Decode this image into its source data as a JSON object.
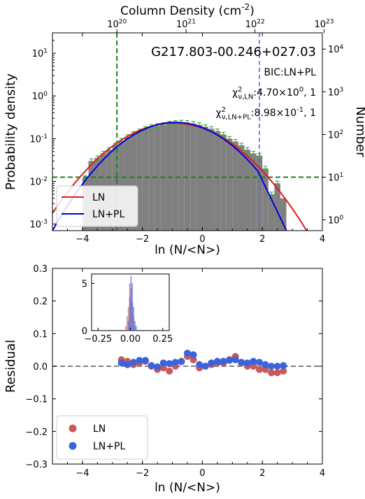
{
  "chart_data": [
    {
      "type": "histogram",
      "panel": "top",
      "title": "G217.803-00.246+027.03",
      "xlabel": "ln (N/<N>)",
      "ylabel": "Probability density",
      "ylabel_right": "Number",
      "xlabel_top": "Column Density (cm$^{-2}$)",
      "xlim": [
        -5,
        4
      ],
      "ylim_log": [
        0.0007,
        30
      ],
      "xticks": [
        "−4",
        "−2",
        "0",
        "2",
        "4"
      ],
      "yticks": [
        "10$^{-3}$",
        "10$^{-2}$",
        "10$^{-1}$",
        "10$^{0}$",
        "10$^{1}$"
      ],
      "top_ticks": [
        "10$^{20}$",
        "10$^{21}$",
        "10$^{22}$",
        "10$^{23}$"
      ],
      "right_ticks": [
        "10$^{0}$",
        "10$^{1}$",
        "10$^{2}$",
        "10$^{3}$",
        "10$^{4}$"
      ],
      "annotations": [
        "BIC:LN+PL",
        "χ$^{2}_{ν,LN}$:4.70×10$^{0}$, 1",
        "χ$^{2}_{ν,LN+PL}$:8.98×10$^{-1}$, 1"
      ],
      "legend": {
        "placement": "lower-left",
        "entries": [
          {
            "label": "LN",
            "color": "#e31a1c"
          },
          {
            "label": "LN+PL",
            "color": "#0000e0"
          }
        ]
      },
      "histogram": {
        "color": "#808080",
        "bin_left": [
          -4.0,
          -3.8,
          -3.6,
          -3.4,
          -3.2,
          -3.0,
          -2.8,
          -2.6,
          -2.4,
          -2.2,
          -2.0,
          -1.8,
          -1.6,
          -1.4,
          -1.2,
          -1.0,
          -0.8,
          -0.6,
          -0.4,
          -0.2,
          0.0,
          0.2,
          0.4,
          0.6,
          0.8,
          1.0,
          1.2,
          1.4,
          1.6,
          1.8,
          2.0,
          2.2,
          2.4,
          2.6
        ],
        "bin_width": 0.2,
        "density": [
          0.012,
          0.03,
          0.035,
          0.045,
          0.055,
          0.07,
          0.09,
          0.11,
          0.13,
          0.15,
          0.17,
          0.19,
          0.2,
          0.21,
          0.225,
          0.235,
          0.24,
          0.235,
          0.225,
          0.21,
          0.19,
          0.17,
          0.15,
          0.125,
          0.1,
          0.085,
          0.07,
          0.055,
          0.045,
          0.04,
          0.02,
          0.005,
          0.009,
          0.004
        ]
      },
      "error_bars": {
        "color": "#3cb43c",
        "x": [
          -3.9,
          -3.7,
          -3.5,
          -3.3,
          -3.1,
          -2.9,
          -2.7,
          -2.5,
          -2.3,
          -2.1,
          -1.9,
          -1.7,
          -1.5,
          -1.3,
          -1.1,
          -0.9,
          -0.7,
          -0.5,
          -0.3,
          -0.1,
          0.1,
          0.3,
          0.5,
          0.7,
          0.9,
          1.1,
          1.3,
          1.5,
          1.7,
          1.9,
          2.1,
          2.3,
          2.5
        ],
        "y": [
          0.012,
          0.03,
          0.035,
          0.045,
          0.055,
          0.07,
          0.09,
          0.11,
          0.13,
          0.15,
          0.17,
          0.19,
          0.2,
          0.21,
          0.225,
          0.235,
          0.24,
          0.235,
          0.225,
          0.21,
          0.19,
          0.17,
          0.15,
          0.125,
          0.1,
          0.085,
          0.07,
          0.055,
          0.045,
          0.04,
          0.02,
          0.005,
          0.009
        ],
        "rel_err": 0.12
      },
      "fits": {
        "LN": {
          "color": "#e31a1c",
          "peak": 0.23,
          "mu": -0.95,
          "sigma": 1.3
        },
        "LN+PL": {
          "color": "#0000e0",
          "peak": 0.24,
          "mu": -0.9,
          "sigma": 1.2,
          "transition_x": 1.85,
          "pl_end": [
            2.85,
            0.0006
          ]
        }
      },
      "reference_lines": {
        "vertical_green_x": -2.85,
        "horizontal_green_y": 0.0125,
        "vertical_blue_x": 1.9
      }
    },
    {
      "type": "scatter",
      "panel": "bottom",
      "xlabel": "ln (N/<N>)",
      "ylabel": "Residual",
      "xlim": [
        -5,
        4
      ],
      "ylim": [
        -0.3,
        0.3
      ],
      "xticks": [
        "−4",
        "−2",
        "0",
        "2",
        "4"
      ],
      "yticks": [
        "−0.3",
        "−0.2",
        "−0.1",
        "0.0",
        "0.1",
        "0.2",
        "0.3"
      ],
      "zero_line": true,
      "legend": {
        "placement": "lower-left",
        "entries": [
          {
            "label": "LN",
            "color": "#c85a5a"
          },
          {
            "label": "LN+PL",
            "color": "#3a64dc"
          }
        ]
      },
      "series": [
        {
          "name": "LN",
          "color": "#c85a5a",
          "x": [
            -2.7,
            -2.5,
            -2.3,
            -2.1,
            -1.9,
            -1.7,
            -1.5,
            -1.3,
            -1.1,
            -0.9,
            -0.7,
            -0.5,
            -0.3,
            -0.1,
            0.1,
            0.3,
            0.5,
            0.7,
            0.9,
            1.1,
            1.3,
            1.5,
            1.7,
            1.9,
            2.1,
            2.3,
            2.5,
            2.7
          ],
          "y": [
            0.02,
            0.015,
            0.005,
            0.01,
            0.015,
            0.0,
            -0.01,
            -0.005,
            -0.015,
            0.0,
            0.015,
            0.03,
            0.02,
            -0.005,
            0.0,
            0.005,
            0.01,
            0.01,
            0.02,
            0.03,
            0.01,
            0.0,
            0.0,
            -0.01,
            -0.01,
            -0.02,
            -0.02,
            -0.015
          ]
        },
        {
          "name": "LN+PL",
          "color": "#3a64dc",
          "x": [
            -2.7,
            -2.5,
            -2.3,
            -2.1,
            -1.9,
            -1.7,
            -1.5,
            -1.3,
            -1.1,
            -0.9,
            -0.7,
            -0.5,
            -0.3,
            -0.1,
            0.1,
            0.3,
            0.5,
            0.7,
            0.9,
            1.1,
            1.3,
            1.5,
            1.7,
            1.9,
            2.1,
            2.3,
            2.5,
            2.7
          ],
          "y": [
            0.01,
            0.005,
            0.012,
            0.018,
            0.018,
            0.002,
            -0.002,
            0.01,
            0.008,
            0.012,
            0.014,
            0.04,
            0.035,
            0.005,
            0.0,
            0.01,
            0.015,
            0.015,
            0.018,
            0.02,
            0.012,
            0.01,
            0.015,
            0.012,
            0.005,
            0.0,
            0.0,
            0.002
          ]
        }
      ]
    },
    {
      "type": "histogram",
      "panel": "inset",
      "xlim": [
        -0.3,
        0.3
      ],
      "ylim": [
        0,
        6
      ],
      "xticks": [
        "−0.25",
        "0.00",
        "0.25"
      ],
      "yticks": [
        "0",
        "5"
      ],
      "bars": [
        {
          "color": "#c85a5a",
          "left": [
            -0.04,
            -0.03,
            -0.02,
            -0.01,
            0.0,
            0.01,
            0.02,
            0.03
          ],
          "width": 0.01,
          "values": [
            0.5,
            1.5,
            2.5,
            5.0,
            4.5,
            3.0,
            1.5,
            0.5
          ]
        },
        {
          "color": "#3a64dc",
          "left": [
            -0.02,
            -0.01,
            0.0,
            0.01,
            0.02,
            0.03,
            0.04
          ],
          "width": 0.01,
          "values": [
            1.0,
            3.5,
            5.8,
            5.0,
            2.5,
            1.0,
            0.5
          ]
        }
      ]
    }
  ]
}
